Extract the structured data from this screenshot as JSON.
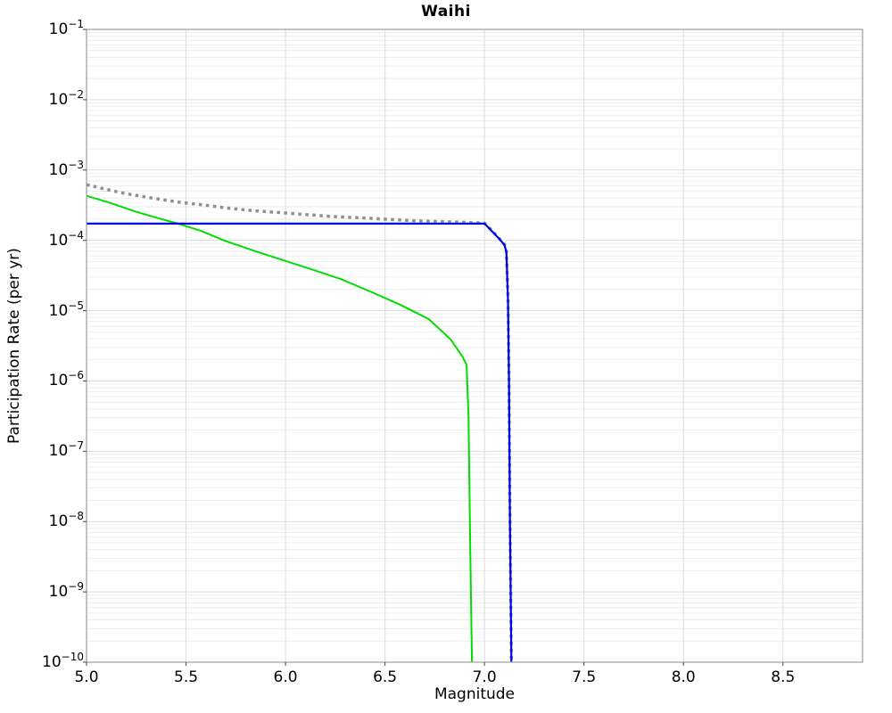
{
  "figure": {
    "title": "Waihi",
    "xlabel": "Magnitude",
    "ylabel": "Participation Rate (per yr)"
  },
  "chart_data": {
    "type": "line",
    "title": "Waihi",
    "xlabel": "Magnitude",
    "ylabel": "Participation Rate (per yr)",
    "xlim": [
      5.0,
      8.9
    ],
    "ylim": [
      1e-10,
      0.1
    ],
    "yscale": "log",
    "grid": true,
    "legend": "none",
    "xticks": [
      5.0,
      5.5,
      6.0,
      6.5,
      7.0,
      7.5,
      8.0,
      8.5
    ],
    "xtick_labels": [
      "5.0",
      "5.5",
      "6.0",
      "6.5",
      "7.0",
      "7.5",
      "8.0",
      "8.5"
    ],
    "ytick_exponents": [
      -1,
      -2,
      -3,
      -4,
      -5,
      -6,
      -7,
      -8,
      -9,
      -10
    ],
    "series": [
      {
        "name": "gray-dotted-total",
        "color": "#8f8f8f",
        "style": "dotted",
        "width": 3.5,
        "points": [
          [
            5.0,
            0.00062
          ],
          [
            5.1,
            0.00053
          ],
          [
            5.2,
            0.00046
          ],
          [
            5.33,
            0.0004
          ],
          [
            5.46,
            0.00035
          ],
          [
            5.58,
            0.00032
          ],
          [
            5.7,
            0.00029
          ],
          [
            5.83,
            0.000265
          ],
          [
            5.96,
            0.00025
          ],
          [
            6.1,
            0.000233
          ],
          [
            6.22,
            0.00022
          ],
          [
            6.36,
            0.00021
          ],
          [
            6.5,
            0.0002
          ],
          [
            6.65,
            0.00019
          ],
          [
            6.81,
            0.000184
          ],
          [
            6.9,
            0.00018
          ],
          [
            7.0,
            0.000176
          ],
          [
            7.03,
            0.000145
          ],
          [
            7.07,
            0.00011
          ],
          [
            7.1,
            8.8e-05
          ],
          [
            7.11,
            7e-05
          ],
          [
            7.118,
            1.5e-05
          ],
          [
            7.123,
            1.2e-06
          ],
          [
            7.128,
            1.2e-08
          ],
          [
            7.135,
            1e-10
          ]
        ]
      },
      {
        "name": "green-solid",
        "color": "#00dd00",
        "style": "solid",
        "width": 2,
        "points": [
          [
            5.0,
            0.00043
          ],
          [
            5.12,
            0.00034
          ],
          [
            5.24,
            0.00026
          ],
          [
            5.35,
            0.00021
          ],
          [
            5.46,
            0.000173
          ],
          [
            5.58,
            0.000135
          ],
          [
            5.69,
            0.0001
          ],
          [
            5.85,
            7e-05
          ],
          [
            5.99,
            5.2e-05
          ],
          [
            6.14,
            3.8e-05
          ],
          [
            6.28,
            2.8e-05
          ],
          [
            6.43,
            1.85e-05
          ],
          [
            6.58,
            1.2e-05
          ],
          [
            6.72,
            7.6e-06
          ],
          [
            6.83,
            3.9e-06
          ],
          [
            6.89,
            2.2e-06
          ],
          [
            6.91,
            1.7e-06
          ],
          [
            6.92,
            3e-07
          ],
          [
            6.928,
            5e-09
          ],
          [
            6.937,
            1e-10
          ]
        ]
      },
      {
        "name": "blue-solid",
        "color": "#0000ee",
        "style": "solid",
        "width": 2.2,
        "points": [
          [
            5.0,
            0.000173
          ],
          [
            7.0,
            0.000173
          ],
          [
            7.03,
            0.000142
          ],
          [
            7.07,
            0.000108
          ],
          [
            7.1,
            8.6e-05
          ],
          [
            7.11,
            6.8e-05
          ],
          [
            7.118,
            1.4e-05
          ],
          [
            7.123,
            1e-06
          ],
          [
            7.128,
            1e-08
          ],
          [
            7.135,
            1e-10
          ]
        ]
      }
    ]
  },
  "style_colors": {
    "grid_minor": "#ececec",
    "grid_major": "#dcdcdc",
    "frame": "#a3a3a3",
    "tick": "#444444"
  }
}
